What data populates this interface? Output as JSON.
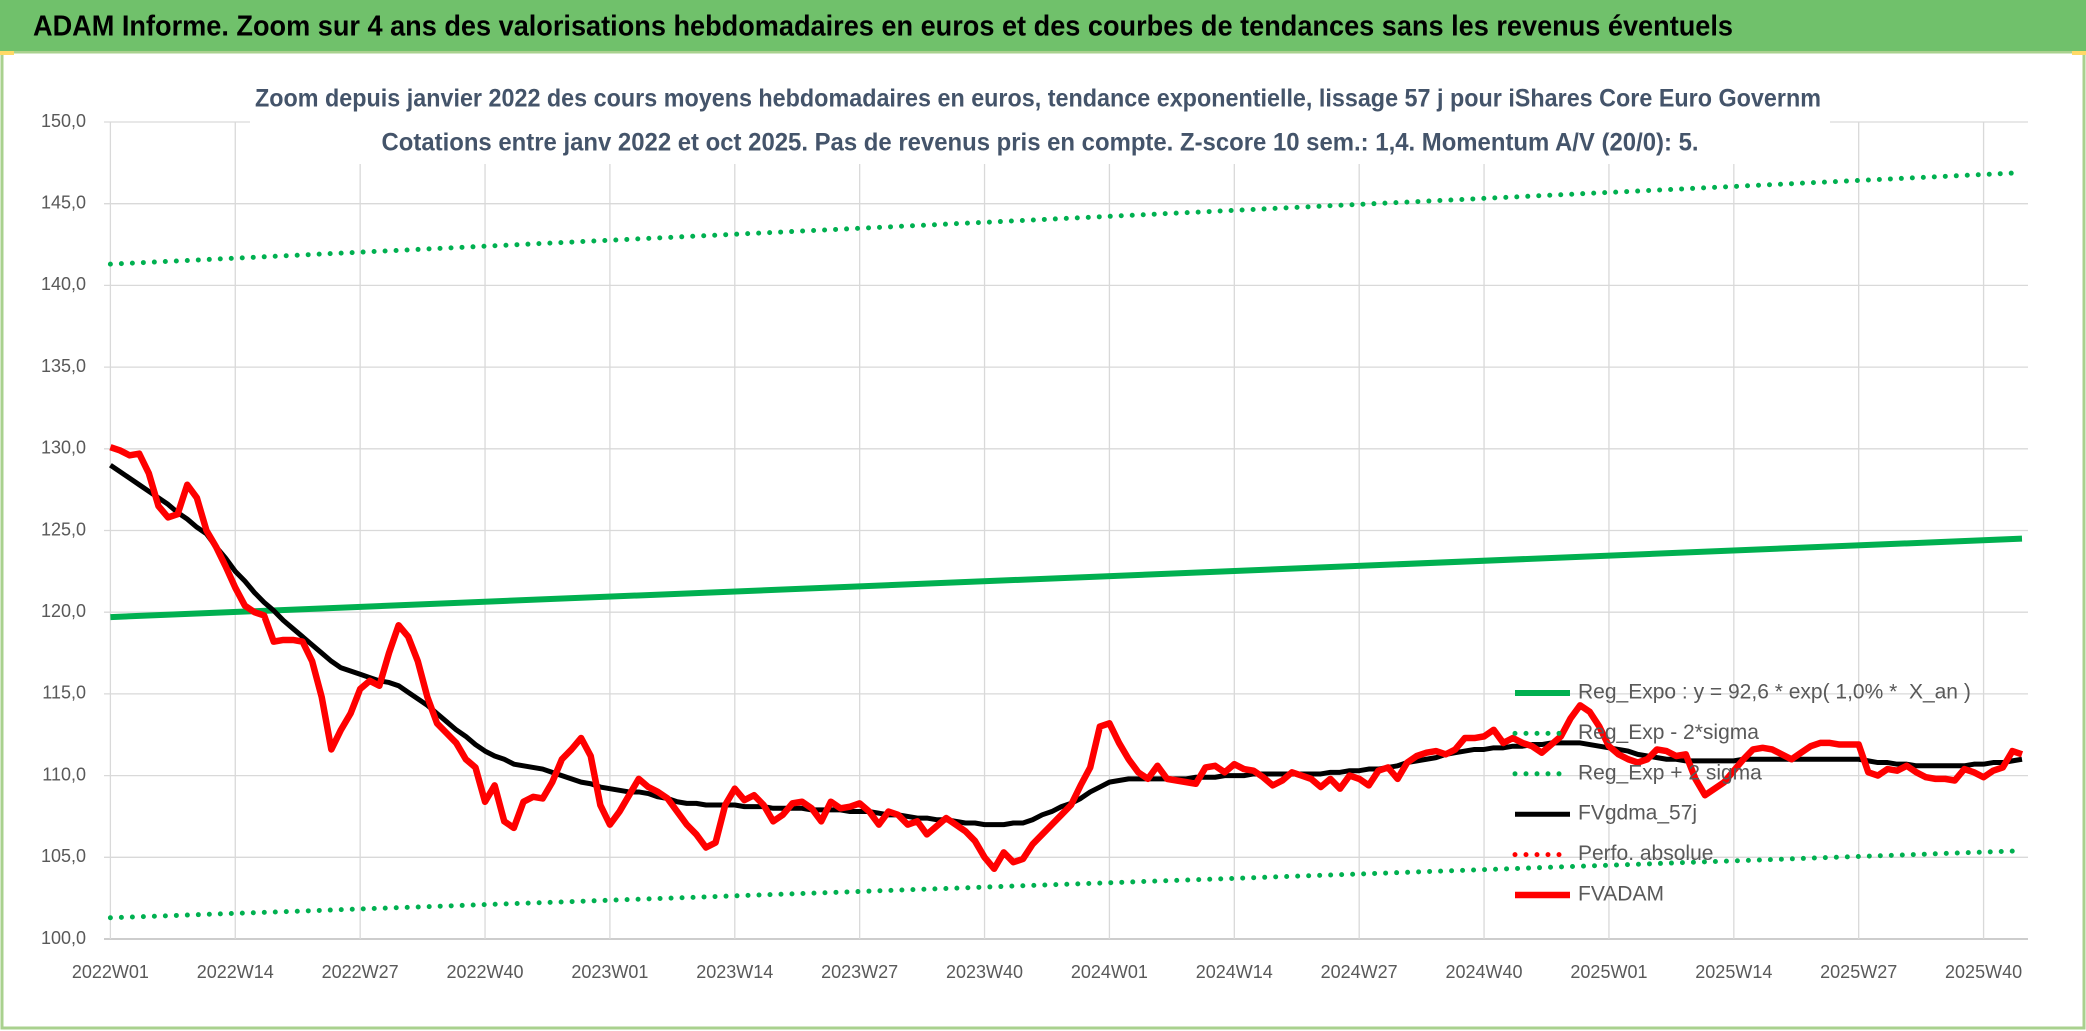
{
  "chart_data": {
    "type": "line",
    "header": "ADAM Informe. Zoom sur 4 ans des valorisations hebdomadaires en euros et des courbes de tendances sans les revenus éventuels",
    "title": "Zoom depuis janvier 2022 des cours moyens hebdomadaires en euros, tendance exponentielle, lissage 57 j pour iShares Core Euro Governm",
    "subtitle": "Cotations entre janv 2022 et oct 2025. Pas de revenus pris en compte. Z-score 10 sem.: 1,4. Momentum A/V (20/0): 5.",
    "categories": [
      "2022W01",
      null,
      null,
      null,
      null,
      null,
      null,
      null,
      null,
      null,
      null,
      null,
      null,
      "2022W14",
      null,
      null,
      null,
      null,
      null,
      null,
      null,
      null,
      null,
      null,
      null,
      null,
      "2022W27",
      null,
      null,
      null,
      null,
      null,
      null,
      null,
      null,
      null,
      null,
      null,
      null,
      "2022W40",
      null,
      null,
      null,
      null,
      null,
      null,
      null,
      null,
      null,
      null,
      null,
      null,
      "2023W01",
      null,
      null,
      null,
      null,
      null,
      null,
      null,
      null,
      null,
      null,
      null,
      null,
      "2023W14",
      null,
      null,
      null,
      null,
      null,
      null,
      null,
      null,
      null,
      null,
      null,
      null,
      "2023W27",
      null,
      null,
      null,
      null,
      null,
      null,
      null,
      null,
      null,
      null,
      null,
      null,
      "2023W40",
      null,
      null,
      null,
      null,
      null,
      null,
      null,
      null,
      null,
      null,
      null,
      null,
      "2024W01",
      null,
      null,
      null,
      null,
      null,
      null,
      null,
      null,
      null,
      null,
      null,
      null,
      "2024W14",
      null,
      null,
      null,
      null,
      null,
      null,
      null,
      null,
      null,
      null,
      null,
      null,
      "2024W27",
      null,
      null,
      null,
      null,
      null,
      null,
      null,
      null,
      null,
      null,
      null,
      null,
      "2024W40",
      null,
      null,
      null,
      null,
      null,
      null,
      null,
      null,
      null,
      null,
      null,
      null,
      "2025W01",
      null,
      null,
      null,
      null,
      null,
      null,
      null,
      null,
      null,
      null,
      null,
      null,
      "2025W14",
      null,
      null,
      null,
      null,
      null,
      null,
      null,
      null,
      null,
      null,
      null,
      null,
      "2025W27",
      null,
      null,
      null,
      null,
      null,
      null,
      null,
      null,
      null,
      null,
      null,
      null,
      "2025W40",
      null,
      null,
      null,
      null
    ],
    "series": [
      {
        "name": "FVgdma_57j",
        "color": "#000000",
        "values": [
          129.0,
          128.6,
          128.2,
          127.8,
          127.4,
          127.0,
          126.6,
          126.1,
          125.7,
          125.2,
          124.8,
          124.0,
          123.3,
          122.5,
          121.9,
          121.2,
          120.6,
          120.1,
          119.5,
          119.0,
          118.5,
          118.0,
          117.5,
          117.0,
          116.6,
          116.4,
          116.2,
          116.0,
          115.8,
          115.7,
          115.5,
          115.1,
          114.7,
          114.3,
          113.8,
          113.3,
          112.8,
          112.4,
          111.9,
          111.5,
          111.2,
          111.0,
          110.7,
          110.6,
          110.5,
          110.4,
          110.2,
          110.0,
          109.8,
          109.6,
          109.5,
          109.3,
          109.2,
          109.1,
          109.0,
          109.0,
          108.9,
          108.7,
          108.6,
          108.4,
          108.3,
          108.3,
          108.2,
          108.2,
          108.2,
          108.2,
          108.1,
          108.1,
          108.1,
          108.0,
          108.0,
          108.0,
          108.0,
          107.9,
          107.9,
          107.9,
          107.9,
          107.8,
          107.8,
          107.8,
          107.7,
          107.6,
          107.6,
          107.5,
          107.4,
          107.4,
          107.3,
          107.3,
          107.2,
          107.1,
          107.1,
          107.0,
          107.0,
          107.0,
          107.1,
          107.1,
          107.3,
          107.6,
          107.8,
          108.1,
          108.3,
          108.6,
          109.0,
          109.3,
          109.6,
          109.7,
          109.8,
          109.8,
          109.8,
          109.8,
          109.8,
          109.8,
          109.8,
          109.9,
          109.9,
          109.9,
          110.0,
          110.0,
          110.0,
          110.1,
          110.1,
          110.1,
          110.1,
          110.1,
          110.1,
          110.1,
          110.1,
          110.2,
          110.2,
          110.3,
          110.3,
          110.4,
          110.4,
          110.5,
          110.6,
          110.8,
          110.9,
          111.0,
          111.1,
          111.3,
          111.4,
          111.5,
          111.6,
          111.6,
          111.7,
          111.7,
          111.8,
          111.8,
          111.9,
          111.9,
          112.0,
          112.0,
          112.0,
          112.0,
          111.9,
          111.8,
          111.7,
          111.6,
          111.5,
          111.3,
          111.2,
          111.1,
          111.0,
          111.0,
          110.9,
          110.9,
          110.9,
          110.9,
          110.9,
          110.9,
          111.0,
          111.0,
          111.0,
          111.0,
          111.0,
          111.0,
          111.0,
          111.0,
          111.0,
          111.0,
          111.0,
          111.0,
          111.0,
          110.9,
          110.8,
          110.8,
          110.7,
          110.7,
          110.6,
          110.6,
          110.6,
          110.6,
          110.6,
          110.6,
          110.7,
          110.7,
          110.8,
          110.8,
          110.9,
          111.0
        ]
      },
      {
        "name": "FVADAM",
        "color": "#ff0000",
        "values": [
          130.1,
          129.9,
          129.6,
          129.7,
          128.5,
          126.5,
          125.8,
          126.0,
          127.8,
          127.0,
          125.0,
          124.0,
          122.8,
          121.5,
          120.4,
          120.0,
          119.8,
          118.2,
          118.3,
          118.3,
          118.2,
          117.0,
          114.8,
          111.6,
          112.8,
          113.8,
          115.3,
          115.8,
          115.5,
          117.5,
          119.2,
          118.5,
          117.0,
          114.8,
          113.2,
          112.6,
          112.0,
          111.0,
          110.5,
          108.4,
          109.4,
          107.2,
          106.8,
          108.4,
          108.7,
          108.6,
          109.6,
          111.0,
          111.6,
          112.3,
          111.2,
          108.2,
          107.0,
          107.8,
          108.8,
          109.8,
          109.3,
          109.0,
          108.6,
          107.8,
          107.0,
          106.4,
          105.6,
          105.9,
          108.2,
          109.2,
          108.5,
          108.8,
          108.2,
          107.2,
          107.6,
          108.3,
          108.4,
          108.0,
          107.2,
          108.4,
          108.0,
          108.1,
          108.3,
          107.8,
          107.0,
          107.8,
          107.6,
          107.0,
          107.2,
          106.4,
          106.9,
          107.4,
          107.0,
          106.6,
          106.0,
          105.0,
          104.3,
          105.3,
          104.7,
          104.9,
          105.8,
          106.4,
          107.0,
          107.6,
          108.2,
          109.4,
          110.5,
          113.0,
          113.2,
          112.0,
          111.0,
          110.2,
          109.8,
          110.6,
          109.8,
          109.7,
          109.6,
          109.5,
          110.5,
          110.6,
          110.2,
          110.7,
          110.4,
          110.3,
          109.9,
          109.4,
          109.7,
          110.2,
          110.0,
          109.8,
          109.3,
          109.8,
          109.2,
          110.0,
          109.8,
          109.4,
          110.3,
          110.5,
          109.8,
          110.8,
          111.2,
          111.4,
          111.5,
          111.3,
          111.6,
          112.3,
          112.3,
          112.4,
          112.8,
          112.0,
          112.3,
          112.0,
          111.8,
          111.4,
          111.9,
          112.4,
          113.5,
          114.3,
          113.9,
          113.0,
          111.8,
          111.3,
          111.0,
          110.8,
          111.0,
          111.6,
          111.5,
          111.2,
          111.3,
          109.8,
          108.8,
          109.2,
          109.6,
          110.3,
          111.0,
          111.6,
          111.7,
          111.6,
          111.3,
          111.0,
          111.4,
          111.8,
          112.0,
          112.0,
          111.9,
          111.9,
          111.9,
          110.2,
          110.0,
          110.4,
          110.3,
          110.6,
          110.2,
          109.9,
          109.8,
          109.8,
          109.7,
          110.4,
          110.2,
          109.9,
          110.3,
          110.5,
          111.5,
          111.3
        ]
      }
    ],
    "trend_lines": [
      {
        "name": "Reg_Expo : y = 92,6 * exp( 1,0% *  X_an )",
        "color": "#00b050",
        "style": "solid",
        "values": [
          119.7,
          124.5
        ]
      },
      {
        "name": "Reg_Exp - 2*sigma",
        "color": "#00b050",
        "style": "dotted",
        "values": [
          101.3,
          105.4
        ]
      },
      {
        "name": "Reg_Exp + 2 sigma",
        "color": "#00b050",
        "style": "dotted",
        "values": [
          141.3,
          146.9
        ]
      }
    ],
    "legend_only": [
      {
        "name": "Perfo. absolue",
        "color": "#ff0000",
        "style": "dotted"
      }
    ],
    "ylim": [
      100,
      150
    ],
    "yticks": [
      {
        "value": 100,
        "label": "100,0"
      },
      {
        "value": 105,
        "label": "105,0"
      },
      {
        "value": 110,
        "label": "110,0"
      },
      {
        "value": 115,
        "label": "115,0"
      },
      {
        "value": 120,
        "label": "120,0"
      },
      {
        "value": 125,
        "label": "125,0"
      },
      {
        "value": 130,
        "label": "130,0"
      },
      {
        "value": 135,
        "label": "135,0"
      },
      {
        "value": 140,
        "label": "140,0"
      },
      {
        "value": 145,
        "label": "145,0"
      },
      {
        "value": 150,
        "label": "150,0"
      }
    ],
    "grid": true
  }
}
